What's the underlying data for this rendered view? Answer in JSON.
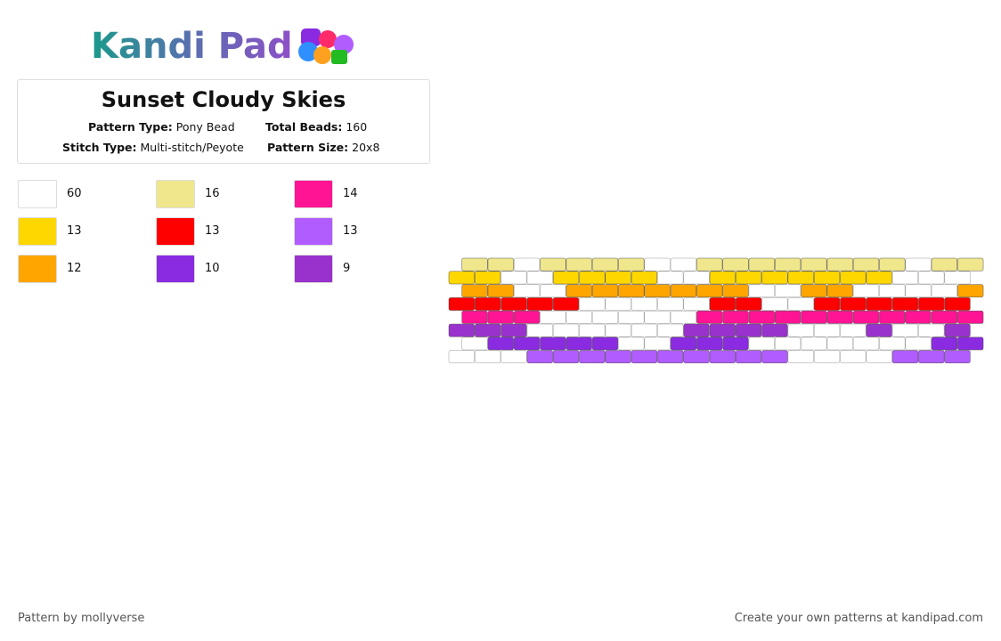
{
  "header": {
    "brand": "Kandi Pad",
    "title": "Sunset Cloudy Skies",
    "pattern_type_label": "Pattern Type:",
    "pattern_type": "Pony Bead",
    "total_beads_label": "Total Beads:",
    "total_beads": "160",
    "stitch_type_label": "Stitch Type:",
    "stitch_type": "Multi-stitch/Peyote",
    "pattern_size_label": "Pattern Size:",
    "pattern_size": "20x8"
  },
  "legend": [
    {
      "color": "#ffffff",
      "count": 60
    },
    {
      "color": "#f0e68c",
      "count": 16
    },
    {
      "color": "#ff1493",
      "count": 14
    },
    {
      "color": "#ffd700",
      "count": 13
    },
    {
      "color": "#ff0000",
      "count": 13
    },
    {
      "color": "#b05cff",
      "count": 13
    },
    {
      "color": "#ffa500",
      "count": 12
    },
    {
      "color": "#8a2be2",
      "count": 10
    },
    {
      "color": "#9932cc",
      "count": 9
    }
  ],
  "pattern": {
    "rows": [
      [
        1,
        1,
        0,
        1,
        1,
        1,
        1,
        0,
        0,
        1,
        1,
        1,
        1,
        1,
        1,
        1,
        1,
        0,
        1,
        1
      ],
      [
        3,
        3,
        0,
        0,
        3,
        3,
        3,
        3,
        0,
        0,
        3,
        3,
        3,
        3,
        3,
        3,
        3,
        0,
        0,
        0
      ],
      [
        6,
        6,
        0,
        0,
        6,
        6,
        6,
        6,
        6,
        6,
        6,
        0,
        0,
        6,
        6,
        0,
        0,
        0,
        0,
        6
      ],
      [
        4,
        4,
        4,
        4,
        4,
        0,
        0,
        0,
        0,
        0,
        4,
        4,
        0,
        0,
        4,
        4,
        4,
        4,
        4,
        4
      ],
      [
        2,
        2,
        2,
        0,
        0,
        0,
        0,
        0,
        0,
        2,
        2,
        2,
        2,
        2,
        2,
        2,
        2,
        2,
        2,
        2
      ],
      [
        8,
        8,
        8,
        0,
        0,
        0,
        0,
        0,
        0,
        8,
        8,
        8,
        8,
        0,
        0,
        0,
        8,
        0,
        0,
        8
      ],
      [
        0,
        7,
        7,
        7,
        7,
        7,
        0,
        0,
        7,
        7,
        7,
        0,
        0,
        0,
        0,
        0,
        0,
        0,
        7,
        7
      ],
      [
        0,
        0,
        0,
        5,
        5,
        5,
        5,
        5,
        5,
        5,
        5,
        5,
        5,
        0,
        0,
        0,
        0,
        5,
        5,
        5
      ]
    ]
  },
  "footer": {
    "author": "Pattern by mollyverse",
    "promo": "Create your own patterns at kandipad.com"
  }
}
